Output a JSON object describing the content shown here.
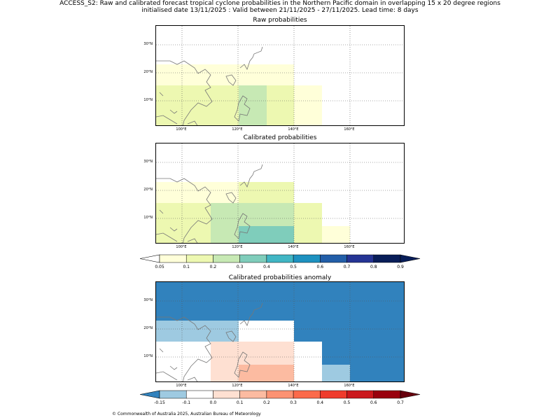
{
  "header": {
    "line1": "ACCESS_S2: Raw and calibrated forecast tropical cyclone probabilities in the Northern Pacific domain in overlapping 15 x 20 degree regions",
    "line2": "initialised date 13/11/2025 :  Valid between 21/11/2025 - 27/11/2025. Lead time: 8 days"
  },
  "panels": [
    {
      "title": "Raw probabilities"
    },
    {
      "title": "Calibrated probabilities"
    },
    {
      "title": "Calibrated probabilities anomaly"
    }
  ],
  "axes": {
    "lon_labels": [
      "100°E",
      "120°E",
      "140°E",
      "160°E"
    ],
    "lat_labels": [
      "30°N",
      "20°N",
      "10°N"
    ]
  },
  "prob_colorbar": {
    "ticks": [
      "0.05",
      "0.1",
      "0.2",
      "0.3",
      "0.4",
      "0.5",
      "0.6",
      "0.7",
      "0.8",
      "0.9"
    ],
    "colors": [
      "#ffffd9",
      "#edf8b1",
      "#c7e9b4",
      "#7fcdbb",
      "#41b6c4",
      "#1d91c0",
      "#225ea8",
      "#253494",
      "#081d58"
    ]
  },
  "anom_colorbar": {
    "ticks": [
      "-0.15",
      "-0.1",
      "0.0",
      "0.1",
      "0.2",
      "0.3",
      "0.4",
      "0.5",
      "0.6",
      "0.7"
    ],
    "colors": [
      "#9ecae1",
      "#ffffff",
      "#fee0d2",
      "#fcbba1",
      "#fc9272",
      "#fb6a4a",
      "#ef3b2c",
      "#cb181d",
      "#99000d"
    ],
    "under_color": "#3182bd"
  },
  "footer": "© Commonwealth of Australia 2025, Australian Bureau of Meteorology"
}
